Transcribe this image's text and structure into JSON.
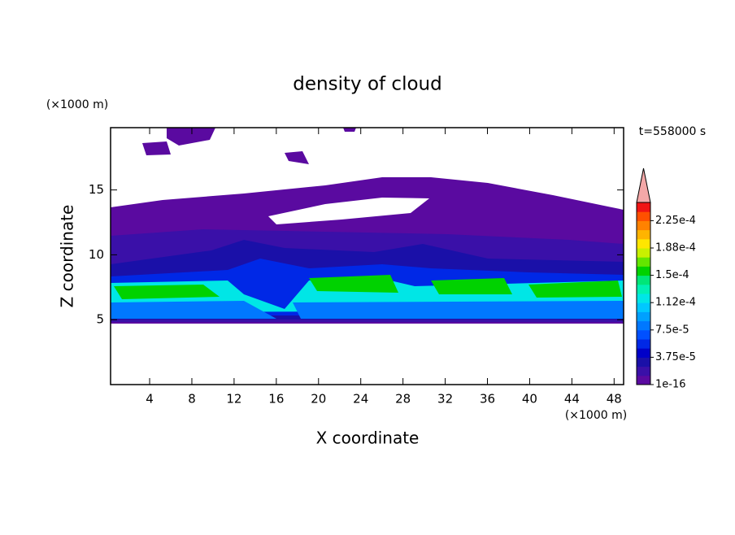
{
  "chart_data": {
    "type": "contour",
    "title": "density of cloud",
    "x_label": "X coordinate",
    "y_label": "Z coordinate",
    "x_unit": "(×1000 m)",
    "y_unit": "(×1000 m)",
    "annotation": "t=558000 s",
    "xlim": [
      0.3,
      48.9
    ],
    "ylim": [
      0,
      19.8
    ],
    "xticks": [
      4,
      8,
      12,
      16,
      20,
      24,
      28,
      32,
      36,
      40,
      44,
      48
    ],
    "yticks": [
      5,
      10,
      15
    ],
    "colorbar": {
      "lim": [
        1e-16,
        0.00025
      ],
      "ticks": [
        {
          "value": 1e-16,
          "label": "1e-16"
        },
        {
          "value": 3.75e-05,
          "label": "3.75e-5"
        },
        {
          "value": 7.5e-05,
          "label": "7.5e-5"
        },
        {
          "value": 0.0001125,
          "label": "1.12e-4"
        },
        {
          "value": 0.00015,
          "label": "1.5e-4"
        },
        {
          "value": 0.0001875,
          "label": "1.88e-4"
        },
        {
          "value": 0.000225,
          "label": "2.25e-4"
        }
      ],
      "colors": [
        "#5a0aa0",
        "#3a10a8",
        "#1a10a8",
        "#0000c8",
        "#0028e6",
        "#0050ff",
        "#0078ff",
        "#00a0ff",
        "#00c8ff",
        "#00e6e6",
        "#00f0b4",
        "#00e678",
        "#00d200",
        "#64e600",
        "#c8f000",
        "#ffe600",
        "#ffb400",
        "#ff8200",
        "#ff5000",
        "#f01414"
      ],
      "extend_color": "#f4a8a8"
    }
  }
}
